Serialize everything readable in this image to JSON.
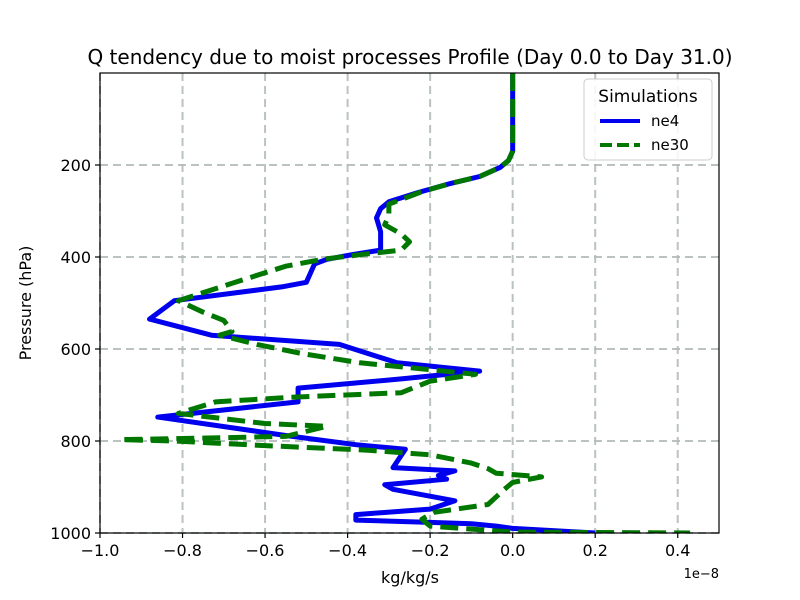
{
  "chart_data": {
    "type": "line",
    "title": "Q tendency due to moist processes Profile (Day 0.0 to Day 31.0)",
    "xlabel": "kg/kg/s",
    "ylabel": "Pressure (hPa)",
    "x_offset_label": "1e−8",
    "xlim": [
      -1.0,
      0.5
    ],
    "ylim": [
      1000,
      0
    ],
    "y_inverted": true,
    "xticks": [
      -1.0,
      -0.8,
      -0.6,
      -0.4,
      -0.2,
      0.0,
      0.2,
      0.4
    ],
    "xtick_labels": [
      "−1.0",
      "−0.8",
      "−0.6",
      "−0.4",
      "−0.2",
      "0.0",
      "0.2",
      "0.4"
    ],
    "yticks": [
      200,
      400,
      600,
      800,
      1000
    ],
    "ytick_labels": [
      "200",
      "400",
      "600",
      "800",
      "1000"
    ],
    "grid": true,
    "legend": {
      "title": "Simulations",
      "placement": "top-right"
    },
    "series": [
      {
        "name": "ne4",
        "color": "#0000ee",
        "style": "solid",
        "points": [
          [
            0.0,
            0
          ],
          [
            0.0,
            100
          ],
          [
            0.0,
            170
          ],
          [
            -0.01,
            190
          ],
          [
            -0.03,
            205
          ],
          [
            -0.08,
            225
          ],
          [
            -0.15,
            240
          ],
          [
            -0.23,
            260
          ],
          [
            -0.3,
            280
          ],
          [
            -0.32,
            295
          ],
          [
            -0.33,
            315
          ],
          [
            -0.32,
            345
          ],
          [
            -0.32,
            385
          ],
          [
            -0.39,
            395
          ],
          [
            -0.45,
            405
          ],
          [
            -0.48,
            415
          ],
          [
            -0.5,
            455
          ],
          [
            -0.56,
            465
          ],
          [
            -0.82,
            495
          ],
          [
            -0.88,
            535
          ],
          [
            -0.73,
            570
          ],
          [
            -0.42,
            590
          ],
          [
            -0.28,
            630
          ],
          [
            -0.08,
            648
          ],
          [
            -0.27,
            665
          ],
          [
            -0.52,
            685
          ],
          [
            -0.52,
            715
          ],
          [
            -0.86,
            748
          ],
          [
            -0.55,
            788
          ],
          [
            -0.38,
            808
          ],
          [
            -0.26,
            818
          ],
          [
            -0.29,
            858
          ],
          [
            -0.14,
            865
          ],
          [
            -0.18,
            875
          ],
          [
            -0.16,
            883
          ],
          [
            -0.31,
            895
          ],
          [
            -0.29,
            905
          ],
          [
            -0.14,
            930
          ],
          [
            -0.2,
            948
          ],
          [
            -0.38,
            960
          ],
          [
            -0.38,
            972
          ],
          [
            -0.2,
            977
          ],
          [
            -0.1,
            980
          ],
          [
            -0.04,
            985
          ],
          [
            0.0,
            990
          ],
          [
            0.2,
            1000
          ]
        ]
      },
      {
        "name": "ne30",
        "color": "#007700",
        "style": "dashed",
        "points": [
          [
            0.0,
            0
          ],
          [
            0.0,
            100
          ],
          [
            0.0,
            170
          ],
          [
            -0.01,
            190
          ],
          [
            -0.03,
            205
          ],
          [
            -0.08,
            225
          ],
          [
            -0.15,
            240
          ],
          [
            -0.22,
            258
          ],
          [
            -0.3,
            285
          ],
          [
            -0.3,
            310
          ],
          [
            -0.31,
            330
          ],
          [
            -0.27,
            350
          ],
          [
            -0.25,
            367
          ],
          [
            -0.27,
            385
          ],
          [
            -0.37,
            395
          ],
          [
            -0.46,
            405
          ],
          [
            -0.55,
            420
          ],
          [
            -0.69,
            460
          ],
          [
            -0.81,
            495
          ],
          [
            -0.75,
            520
          ],
          [
            -0.7,
            538
          ],
          [
            -0.68,
            562
          ],
          [
            -0.71,
            570
          ],
          [
            -0.62,
            590
          ],
          [
            -0.51,
            610
          ],
          [
            -0.37,
            630
          ],
          [
            -0.2,
            645
          ],
          [
            -0.09,
            655
          ],
          [
            -0.2,
            670
          ],
          [
            -0.27,
            695
          ],
          [
            -0.54,
            705
          ],
          [
            -0.72,
            715
          ],
          [
            -0.81,
            740
          ],
          [
            -0.6,
            762
          ],
          [
            -0.45,
            768
          ],
          [
            -0.55,
            790
          ],
          [
            -0.82,
            795
          ],
          [
            -0.95,
            797
          ],
          [
            -0.82,
            800
          ],
          [
            -0.6,
            810
          ],
          [
            -0.35,
            820
          ],
          [
            -0.2,
            830
          ],
          [
            -0.1,
            848
          ],
          [
            -0.06,
            860
          ],
          [
            -0.04,
            870
          ],
          [
            0.07,
            878
          ],
          [
            0.0,
            890
          ],
          [
            -0.02,
            905
          ],
          [
            -0.06,
            938
          ],
          [
            -0.19,
            955
          ],
          [
            -0.22,
            970
          ],
          [
            -0.2,
            985
          ],
          [
            0.0,
            998
          ],
          [
            0.43,
            1000
          ]
        ]
      }
    ]
  }
}
